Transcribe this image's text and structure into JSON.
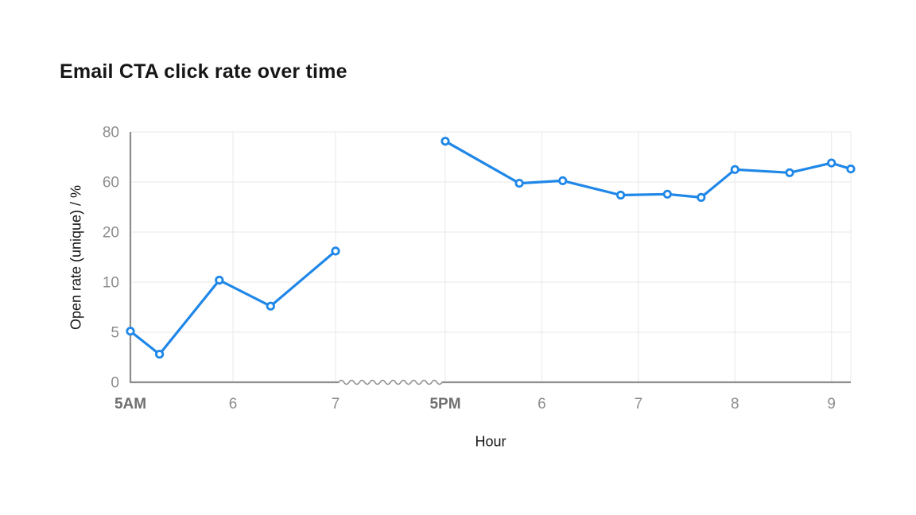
{
  "page": {
    "background": "#ffffff"
  },
  "chart_data": {
    "type": "line",
    "title": "Email CTA click rate over time",
    "xlabel": "Hour",
    "ylabel": "Open rate (unique) / %",
    "grid": true,
    "legend": "none",
    "y_axis": {
      "ticks": [
        0,
        5,
        10,
        20,
        60,
        80
      ],
      "note": "tick values are evenly spaced on screen (non-linear scale)"
    },
    "x_axis": {
      "ticks": [
        {
          "label": "5AM",
          "minutes": 300,
          "emphasis": true
        },
        {
          "label": "6",
          "minutes": 360,
          "emphasis": false
        },
        {
          "label": "7",
          "minutes": 420,
          "emphasis": false
        },
        {
          "label": "5PM",
          "minutes": 1020,
          "emphasis": true
        },
        {
          "label": "6",
          "minutes": 1080,
          "emphasis": false
        },
        {
          "label": "7",
          "minutes": 1140,
          "emphasis": false
        },
        {
          "label": "8",
          "minutes": 1200,
          "emphasis": false
        },
        {
          "label": "9",
          "minutes": 1260,
          "emphasis": false
        }
      ],
      "break": {
        "between": [
          "7AM",
          "5PM"
        ],
        "style": "squiggle"
      }
    },
    "series": [
      {
        "name": "Open rate (unique)",
        "color": "#1f87e8",
        "marker": "open-circle",
        "segments": [
          [
            {
              "time": "5:00 AM",
              "minutes": 300,
              "value": 5.1
            },
            {
              "time": "5:17 AM",
              "minutes": 317,
              "value": 2.8
            },
            {
              "time": "5:52 AM",
              "minutes": 352,
              "value": 10.4
            },
            {
              "time": "6:22 AM",
              "minutes": 382,
              "value": 7.6
            },
            {
              "time": "7:00 AM",
              "minutes": 420,
              "value": 16.2
            }
          ],
          [
            {
              "time": "5:00 PM",
              "minutes": 1020,
              "value": 76.3
            },
            {
              "time": "5:46 PM",
              "minutes": 1066,
              "value": 59.0
            },
            {
              "time": "6:13 PM",
              "minutes": 1093,
              "value": 60.5
            },
            {
              "time": "6:49 PM",
              "minutes": 1129,
              "value": 49.5
            },
            {
              "time": "7:18 PM",
              "minutes": 1158,
              "value": 50.3
            },
            {
              "time": "7:39 PM",
              "minutes": 1179,
              "value": 47.7
            },
            {
              "time": "8:00 PM",
              "minutes": 1200,
              "value": 65.0
            },
            {
              "time": "8:34 PM",
              "minutes": 1234,
              "value": 63.7
            },
            {
              "time": "9:00 PM",
              "minutes": 1260,
              "value": 67.6
            },
            {
              "time": "9:12 PM",
              "minutes": 1272,
              "value": 65.2
            }
          ]
        ]
      }
    ],
    "style": {
      "line_color": "#1f87e8",
      "marker_fill": "#ffffff",
      "axis_color": "#8d8d8d",
      "grid_color": "#e8e8e8",
      "tick_text_color": "#8d8d8d",
      "tick_text_emphasis_color": "#6f6f6f",
      "text_color": "#161616",
      "background": "#ffffff"
    }
  }
}
